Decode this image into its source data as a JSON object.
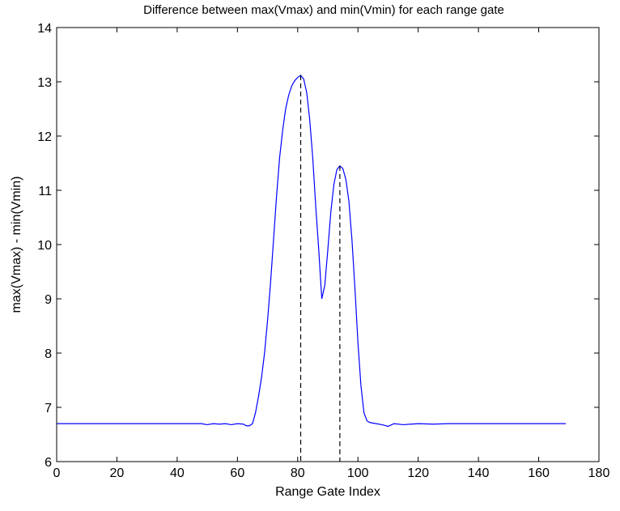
{
  "chart_data": {
    "type": "line",
    "title": "Difference between max(Vmax) and min(Vmin) for each range gate",
    "xlabel": "Range Gate Index",
    "ylabel": "max(Vmax) - min(Vmin)",
    "xlim": [
      0,
      180
    ],
    "ylim": [
      6,
      14
    ],
    "xticks": [
      0,
      20,
      40,
      60,
      80,
      100,
      120,
      140,
      160,
      180
    ],
    "yticks": [
      6,
      7,
      8,
      9,
      10,
      11,
      12,
      13,
      14
    ],
    "grid": false,
    "series": [
      {
        "color": "#0000ff",
        "x": [
          0,
          10,
          20,
          30,
          40,
          48,
          50,
          52,
          54,
          56,
          58,
          60,
          62,
          63,
          64,
          65,
          66,
          67,
          68,
          69,
          70,
          71,
          72,
          73,
          74,
          75,
          76,
          77,
          78,
          79,
          80,
          81,
          82,
          83,
          84,
          85,
          86,
          87,
          88,
          89,
          90,
          91,
          92,
          93,
          94,
          95,
          96,
          97,
          98,
          99,
          100,
          101,
          102,
          103,
          104,
          106,
          108,
          110,
          112,
          115,
          120,
          125,
          130,
          140,
          150,
          160,
          169
        ],
        "y": [
          6.7,
          6.7,
          6.7,
          6.7,
          6.7,
          6.7,
          6.68,
          6.7,
          6.69,
          6.7,
          6.68,
          6.7,
          6.69,
          6.66,
          6.66,
          6.7,
          6.9,
          7.2,
          7.55,
          8.0,
          8.6,
          9.3,
          10.1,
          10.9,
          11.6,
          12.1,
          12.5,
          12.75,
          12.92,
          13.02,
          13.08,
          13.12,
          13.05,
          12.8,
          12.3,
          11.6,
          10.7,
          9.9,
          9.0,
          9.25,
          9.9,
          10.6,
          11.1,
          11.38,
          11.45,
          11.4,
          11.2,
          10.8,
          10.1,
          9.2,
          8.2,
          7.4,
          6.9,
          6.75,
          6.72,
          6.7,
          6.68,
          6.65,
          6.7,
          6.68,
          6.7,
          6.69,
          6.7,
          6.7,
          6.7,
          6.7,
          6.7
        ]
      }
    ],
    "markers": [
      {
        "x": 81,
        "y": 13.12,
        "color": "#000000"
      },
      {
        "x": 94,
        "y": 11.45,
        "color": "#000000"
      }
    ]
  }
}
